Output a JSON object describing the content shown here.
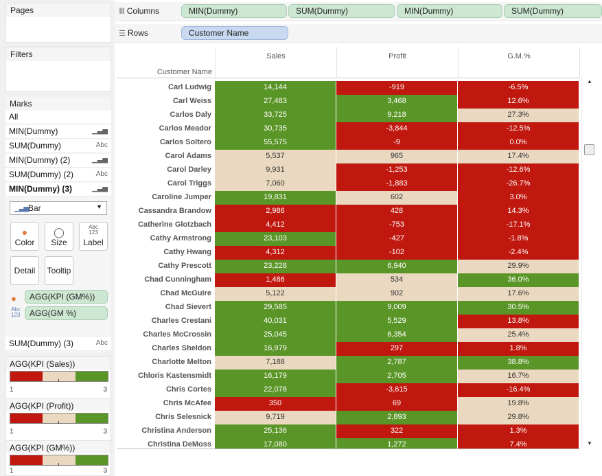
{
  "left": {
    "pages_title": "Pages",
    "filters_title": "Filters",
    "marks_title": "Marks",
    "marks_rows": [
      {
        "label": "All",
        "icon": ""
      },
      {
        "label": "MIN(Dummy)",
        "icon": "bar-chart-icon"
      },
      {
        "label": "SUM(Dummy)",
        "icon": "Abc"
      },
      {
        "label": "MIN(Dummy) (2)",
        "icon": "bar-chart-icon"
      },
      {
        "label": "SUM(Dummy) (2)",
        "icon": "Abc"
      },
      {
        "label": "MIN(Dummy) (3)",
        "icon": "bar-chart-icon"
      }
    ],
    "mark_type": "Bar",
    "buttons": {
      "color": "Color",
      "size": "Size",
      "label": "Label",
      "detail": "Detail",
      "tooltip": "Tooltip",
      "label_icon_text": "Abc\n123"
    },
    "color_pill": "AGG(KPI (GM%))",
    "label_pill": "AGG(GM %)",
    "sum3": {
      "label": "SUM(Dummy) (3)",
      "icon": "Abc"
    },
    "legends": [
      {
        "title": "AGG(KPI (Sales))",
        "min": "1",
        "max": "3"
      },
      {
        "title": "AGG(KPI (Profit))",
        "min": "1",
        "max": "3"
      },
      {
        "title": "AGG(KPI (GM%))",
        "min": "1",
        "max": "3"
      }
    ]
  },
  "shelves": {
    "columns_label": "Columns",
    "columns_pills": [
      "MIN(Dummy)",
      "SUM(Dummy)",
      "MIN(Dummy)",
      "SUM(Dummy)"
    ],
    "rows_label": "Rows",
    "rows_pill": "Customer Name"
  },
  "colors": {
    "kpi_high": "#5a9527",
    "kpi_mid": "#ead9c0",
    "kpi_low": "#c0170e"
  },
  "chart_data": {
    "type": "table",
    "row_header": "Customer Name",
    "columns": [
      "Sales",
      "Profit",
      "G.M.%"
    ],
    "kpi_levels": {
      "1": "low (red)",
      "2": "mid (beige)",
      "3": "high (green)"
    },
    "rows": [
      {
        "name": "Carl Ludwig",
        "sales": "14,144",
        "sk": 3,
        "profit": "-919",
        "pk": 1,
        "gm": "-6.5%",
        "gk": 1
      },
      {
        "name": "Carl Weiss",
        "sales": "27,483",
        "sk": 3,
        "profit": "3,468",
        "pk": 3,
        "gm": "12.6%",
        "gk": 1
      },
      {
        "name": "Carlos Daly",
        "sales": "33,725",
        "sk": 3,
        "profit": "9,218",
        "pk": 3,
        "gm": "27.3%",
        "gk": 2
      },
      {
        "name": "Carlos Meador",
        "sales": "30,735",
        "sk": 3,
        "profit": "-3,844",
        "pk": 1,
        "gm": "-12.5%",
        "gk": 1
      },
      {
        "name": "Carlos Soltero",
        "sales": "55,575",
        "sk": 3,
        "profit": "-9",
        "pk": 1,
        "gm": "0.0%",
        "gk": 1
      },
      {
        "name": "Carol Adams",
        "sales": "5,537",
        "sk": 2,
        "profit": "965",
        "pk": 2,
        "gm": "17.4%",
        "gk": 2
      },
      {
        "name": "Carol Darley",
        "sales": "9,931",
        "sk": 2,
        "profit": "-1,253",
        "pk": 1,
        "gm": "-12.6%",
        "gk": 1
      },
      {
        "name": "Carol Triggs",
        "sales": "7,060",
        "sk": 2,
        "profit": "-1,883",
        "pk": 1,
        "gm": "-26.7%",
        "gk": 1
      },
      {
        "name": "Caroline Jumper",
        "sales": "19,831",
        "sk": 3,
        "profit": "602",
        "pk": 2,
        "gm": "3.0%",
        "gk": 1
      },
      {
        "name": "Cassandra Brandow",
        "sales": "2,986",
        "sk": 1,
        "profit": "428",
        "pk": 1,
        "gm": "14.3%",
        "gk": 1
      },
      {
        "name": "Catherine Glotzbach",
        "sales": "4,412",
        "sk": 1,
        "profit": "-753",
        "pk": 1,
        "gm": "-17.1%",
        "gk": 1
      },
      {
        "name": "Cathy Armstrong",
        "sales": "23,103",
        "sk": 3,
        "profit": "-427",
        "pk": 1,
        "gm": "-1.8%",
        "gk": 1
      },
      {
        "name": "Cathy Hwang",
        "sales": "4,312",
        "sk": 1,
        "profit": "-102",
        "pk": 1,
        "gm": "-2.4%",
        "gk": 1
      },
      {
        "name": "Cathy Prescott",
        "sales": "23,228",
        "sk": 3,
        "profit": "6,940",
        "pk": 3,
        "gm": "29.9%",
        "gk": 2
      },
      {
        "name": "Chad Cunningham",
        "sales": "1,486",
        "sk": 1,
        "profit": "534",
        "pk": 2,
        "gm": "36.0%",
        "gk": 3
      },
      {
        "name": "Chad McGuire",
        "sales": "5,122",
        "sk": 2,
        "profit": "902",
        "pk": 2,
        "gm": "17.6%",
        "gk": 2
      },
      {
        "name": "Chad Sievert",
        "sales": "29,585",
        "sk": 3,
        "profit": "9,009",
        "pk": 3,
        "gm": "30.5%",
        "gk": 3
      },
      {
        "name": "Charles Crestani",
        "sales": "40,031",
        "sk": 3,
        "profit": "5,529",
        "pk": 3,
        "gm": "13.8%",
        "gk": 1
      },
      {
        "name": "Charles McCrossin",
        "sales": "25,045",
        "sk": 3,
        "profit": "6,354",
        "pk": 3,
        "gm": "25.4%",
        "gk": 2
      },
      {
        "name": "Charles Sheldon",
        "sales": "16,979",
        "sk": 3,
        "profit": "297",
        "pk": 1,
        "gm": "1.8%",
        "gk": 1
      },
      {
        "name": "Charlotte Melton",
        "sales": "7,188",
        "sk": 2,
        "profit": "2,787",
        "pk": 3,
        "gm": "38.8%",
        "gk": 3
      },
      {
        "name": "Chloris Kastensmidt",
        "sales": "16,179",
        "sk": 3,
        "profit": "2,705",
        "pk": 3,
        "gm": "16.7%",
        "gk": 2
      },
      {
        "name": "Chris Cortes",
        "sales": "22,078",
        "sk": 3,
        "profit": "-3,615",
        "pk": 1,
        "gm": "-16.4%",
        "gk": 1
      },
      {
        "name": "Chris McAfee",
        "sales": "350",
        "sk": 1,
        "profit": "69",
        "pk": 1,
        "gm": "19.8%",
        "gk": 2
      },
      {
        "name": "Chris Selesnick",
        "sales": "9,719",
        "sk": 2,
        "profit": "2,893",
        "pk": 3,
        "gm": "29.8%",
        "gk": 2
      },
      {
        "name": "Christina Anderson",
        "sales": "25,136",
        "sk": 3,
        "profit": "322",
        "pk": 1,
        "gm": "1.3%",
        "gk": 1
      },
      {
        "name": "Christina DeMoss",
        "sales": "17,080",
        "sk": 3,
        "profit": "1,272",
        "pk": 3,
        "gm": "7.4%",
        "gk": 1
      }
    ]
  }
}
